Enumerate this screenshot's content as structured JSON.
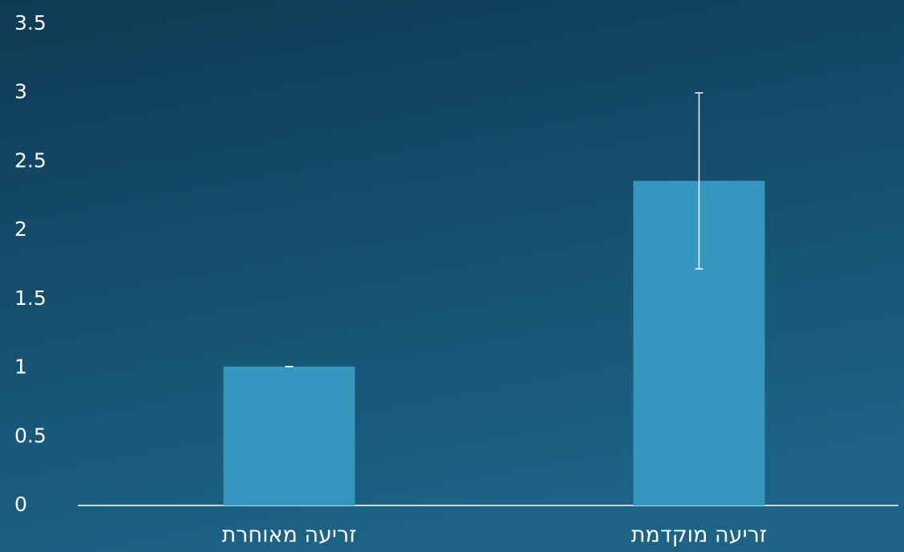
{
  "chart_data": {
    "type": "bar",
    "categories": [
      "זריעה מאוחרת",
      "זריעה מוקדמת"
    ],
    "values": [
      1.01,
      2.36
    ],
    "errors": [
      0,
      0.64
    ],
    "color": "#3596bf",
    "ylim": [
      0,
      3.5
    ],
    "yticks": [
      0,
      0.5,
      1,
      1.5,
      2,
      2.5,
      3,
      3.5
    ],
    "grid": false
  }
}
